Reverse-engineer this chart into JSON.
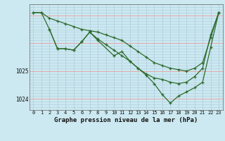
{
  "background_color": "#cce8f0",
  "grid_color": "#aaccdd",
  "line_color": "#2d6b2d",
  "xlabel": "Graphe pression niveau de la mer (hPa)",
  "xlabel_fontsize": 6.5,
  "tick_fontsize": 5.5,
  "xlim": [
    -0.5,
    23.5
  ],
  "ylim": [
    1023.6,
    1027.4
  ],
  "yticks": [
    1024,
    1025
  ],
  "xticks": [
    0,
    1,
    2,
    3,
    4,
    5,
    6,
    7,
    8,
    9,
    10,
    11,
    12,
    13,
    14,
    15,
    16,
    17,
    18,
    19,
    20,
    21,
    22,
    23
  ],
  "series": [
    {
      "x": [
        0,
        1,
        2,
        3,
        4,
        5,
        6,
        7,
        8,
        9,
        10,
        11,
        12,
        13,
        14,
        15,
        16,
        17,
        18,
        19,
        20,
        21,
        22,
        23
      ],
      "y": [
        1027.1,
        1027.1,
        1026.9,
        1026.8,
        1026.7,
        1026.6,
        1026.5,
        1026.45,
        1026.4,
        1026.3,
        1026.2,
        1026.1,
        1025.9,
        1025.7,
        1025.5,
        1025.3,
        1025.2,
        1025.1,
        1025.05,
        1025.0,
        1025.1,
        1025.3,
        1026.2,
        1027.1
      ]
    },
    {
      "x": [
        0,
        1,
        2,
        3,
        4,
        5,
        6,
        7,
        8,
        9,
        10,
        11,
        12,
        13,
        14,
        15,
        16,
        17,
        18,
        19,
        20,
        21,
        22,
        23
      ],
      "y": [
        1027.1,
        1027.1,
        1026.5,
        1025.8,
        1025.8,
        1025.75,
        1026.05,
        1026.4,
        1026.15,
        1025.95,
        1025.75,
        1025.55,
        1025.35,
        1025.1,
        1024.9,
        1024.75,
        1024.7,
        1024.6,
        1024.55,
        1024.6,
        1024.8,
        1025.1,
        1026.3,
        1027.1
      ]
    },
    {
      "x": [
        2,
        3,
        4,
        5,
        6,
        7,
        8,
        10,
        11,
        12,
        13,
        14,
        15,
        16,
        17,
        18,
        19,
        20,
        21,
        22,
        23
      ],
      "y": [
        1026.5,
        1025.8,
        1025.8,
        1025.75,
        1026.05,
        1026.4,
        1026.1,
        1025.55,
        1025.7,
        1025.35,
        1025.1,
        1024.85,
        1024.55,
        1024.15,
        1023.85,
        1024.1,
        1024.25,
        1024.4,
        1024.6,
        1025.85,
        1027.1
      ]
    }
  ]
}
